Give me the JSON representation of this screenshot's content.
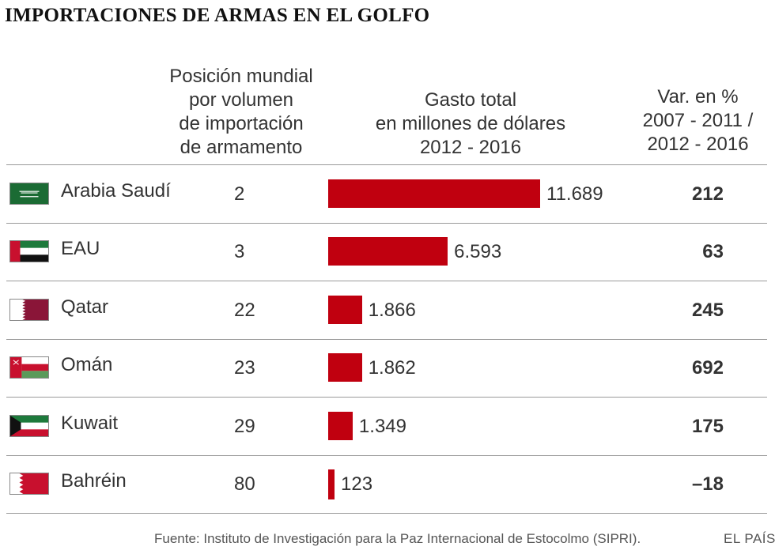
{
  "chart_data": {
    "type": "table",
    "title": "IMPORTACIONES DE ARMAS EN EL GOLFO",
    "columns": {
      "rank": [
        "Posición mundial",
        "por volumen",
        "de importación",
        "de armamento"
      ],
      "spend": [
        "Gasto total",
        "en millones de dólares",
        "2012 - 2016"
      ],
      "variation": [
        "Var. en %",
        "2007 - 2011 /",
        "2012 - 2016"
      ]
    },
    "series_unit": "millones de dólares",
    "xlim": [
      0,
      11689
    ],
    "rows": [
      {
        "country": "Arabia Saudí",
        "flag": "saudi-arabia-flag",
        "rank": "2",
        "value": 11689,
        "value_label": "11.689",
        "variation": "212"
      },
      {
        "country": "EAU",
        "flag": "uae-flag",
        "rank": "3",
        "value": 6593,
        "value_label": "6.593",
        "variation": "63"
      },
      {
        "country": "Qatar",
        "flag": "qatar-flag",
        "rank": "22",
        "value": 1866,
        "value_label": "1.866",
        "variation": "245"
      },
      {
        "country": "Omán",
        "flag": "oman-flag",
        "rank": "23",
        "value": 1862,
        "value_label": "1.862",
        "variation": "692"
      },
      {
        "country": "Kuwait",
        "flag": "kuwait-flag",
        "rank": "29",
        "value": 1349,
        "value_label": "1.349",
        "variation": "175"
      },
      {
        "country": "Bahréin",
        "flag": "bahrain-flag",
        "rank": "80",
        "value": 123,
        "value_label": "123",
        "variation": "–18"
      }
    ],
    "bar_color": "#c0000f"
  },
  "footer": {
    "source": "Fuente: Instituto de Investigación para la Paz Internacional de Estocolmo (SIPRI).",
    "brand": "EL PAÍS"
  }
}
